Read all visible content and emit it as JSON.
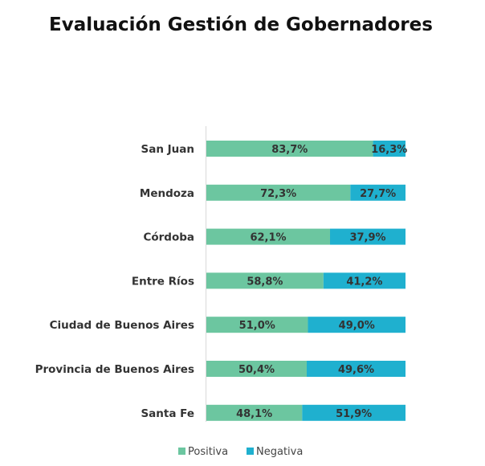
{
  "chart_data": {
    "type": "bar",
    "orientation": "horizontal",
    "stacked": true,
    "title": "Evaluación Gestión de Gobernadores",
    "categories": [
      "San Juan",
      "Mendoza",
      "Córdoba",
      "Entre Ríos",
      "Ciudad de Buenos Aires",
      "Provincia de Buenos Aires",
      "Santa Fe"
    ],
    "series": [
      {
        "name": "Positiva",
        "color": "#6cc6a0",
        "values": [
          83.7,
          72.3,
          62.1,
          58.8,
          51.0,
          50.4,
          48.1
        ],
        "labels": [
          "83,7%",
          "72,3%",
          "62,1%",
          "58,8%",
          "51,0%",
          "50,4%",
          "48,1%"
        ]
      },
      {
        "name": "Negativa",
        "color": "#1fb0cf",
        "values": [
          16.3,
          27.7,
          37.9,
          41.2,
          49.0,
          49.6,
          51.9
        ],
        "labels": [
          "16,3%",
          "27,7%",
          "37,9%",
          "41,2%",
          "49,0%",
          "49,6%",
          "51,9%"
        ]
      }
    ],
    "xlim": [
      0,
      100
    ],
    "legend": "bottom",
    "grid": false
  }
}
